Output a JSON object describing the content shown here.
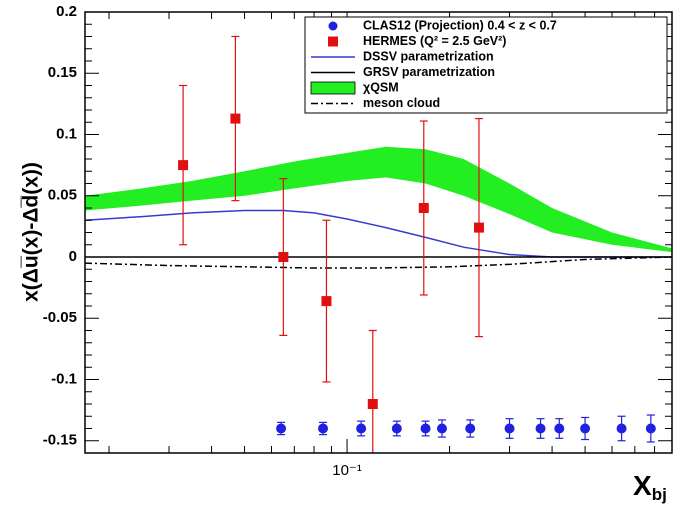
{
  "chart_data": {
    "type": "scatter",
    "ylabel": "x(Δu̅(x)-Δd̅(x))",
    "xlabel": "X",
    "xlabel_sub": "bj",
    "xlog": true,
    "xlim": [
      0.017,
      0.9
    ],
    "ylim": [
      -0.16,
      0.2
    ],
    "xticks": [
      {
        "value": 0.1,
        "label": "10⁻¹"
      }
    ],
    "xminor": [
      0.02,
      0.03,
      0.04,
      0.05,
      0.06,
      0.07,
      0.08,
      0.09,
      0.2,
      0.3,
      0.4,
      0.5,
      0.6,
      0.7,
      0.8,
      0.9
    ],
    "yticks": [
      0.2,
      0.15,
      0.1,
      0.05,
      0,
      -0.05,
      -0.1,
      -0.15
    ],
    "yminor": [
      0.19,
      0.18,
      0.17,
      0.16,
      0.14,
      0.13,
      0.12,
      0.11,
      0.09,
      0.08,
      0.07,
      0.06,
      0.04,
      0.03,
      0.02,
      0.01,
      -0.01,
      -0.02,
      -0.03,
      -0.04,
      -0.06,
      -0.07,
      -0.08,
      -0.09,
      -0.11,
      -0.12,
      -0.13,
      -0.14
    ],
    "legend": "upper right",
    "series": [
      {
        "name": "CLAS12 (Projection) 0.4 < z < 0.7",
        "style": "points",
        "marker": "circle",
        "color": "#2020e0",
        "x": [
          0.064,
          0.085,
          0.11,
          0.14,
          0.17,
          0.19,
          0.23,
          0.3,
          0.37,
          0.42,
          0.5,
          0.64,
          0.78
        ],
        "values": [
          -0.14,
          -0.14,
          -0.14,
          -0.14,
          -0.14,
          -0.14,
          -0.14,
          -0.14,
          -0.14,
          -0.14,
          -0.14,
          -0.14,
          -0.14
        ],
        "errors": [
          0.005,
          0.005,
          0.006,
          0.006,
          0.006,
          0.007,
          0.007,
          0.008,
          0.008,
          0.008,
          0.009,
          0.01,
          0.011
        ]
      },
      {
        "name": "HERMES (Q² = 2.5 GeV²)",
        "style": "points",
        "marker": "square",
        "color": "#e01010",
        "x": [
          0.033,
          0.047,
          0.065,
          0.087,
          0.119,
          0.168,
          0.244
        ],
        "values": [
          0.075,
          0.113,
          0.0,
          -0.036,
          -0.12,
          0.04,
          0.024
        ],
        "errors": [
          0.065,
          0.067,
          0.064,
          0.066,
          0.06,
          0.071,
          0.089
        ]
      },
      {
        "name": "DSSV parametrization",
        "style": "line",
        "color": "#3a3ad0",
        "x": [
          0.017,
          0.025,
          0.035,
          0.05,
          0.065,
          0.08,
          0.1,
          0.13,
          0.17,
          0.22,
          0.3,
          0.4,
          0.6,
          0.9
        ],
        "values": [
          0.03,
          0.033,
          0.036,
          0.038,
          0.038,
          0.036,
          0.031,
          0.024,
          0.016,
          0.008,
          0.002,
          0,
          0,
          0
        ]
      },
      {
        "name": "GRSV parametrization",
        "style": "line",
        "color": "#000000",
        "x": [
          0.017,
          0.9
        ],
        "values": [
          0,
          0
        ]
      },
      {
        "name": "χQSM",
        "style": "band",
        "color": "#22ee22",
        "x": [
          0.017,
          0.025,
          0.035,
          0.05,
          0.07,
          0.1,
          0.13,
          0.17,
          0.22,
          0.3,
          0.4,
          0.6,
          0.9
        ],
        "lower": [
          0.038,
          0.042,
          0.046,
          0.05,
          0.056,
          0.062,
          0.065,
          0.06,
          0.05,
          0.035,
          0.02,
          0.01,
          0.004
        ],
        "upper": [
          0.05,
          0.056,
          0.062,
          0.07,
          0.078,
          0.085,
          0.09,
          0.088,
          0.08,
          0.06,
          0.04,
          0.02,
          0.007
        ]
      },
      {
        "name": "meson cloud",
        "style": "line",
        "dash": "dashdot",
        "color": "#000000",
        "x": [
          0.017,
          0.03,
          0.05,
          0.08,
          0.12,
          0.2,
          0.3,
          0.5,
          0.9
        ],
        "values": [
          -0.005,
          -0.007,
          -0.008,
          -0.009,
          -0.009,
          -0.008,
          -0.006,
          -0.002,
          0
        ]
      }
    ]
  }
}
